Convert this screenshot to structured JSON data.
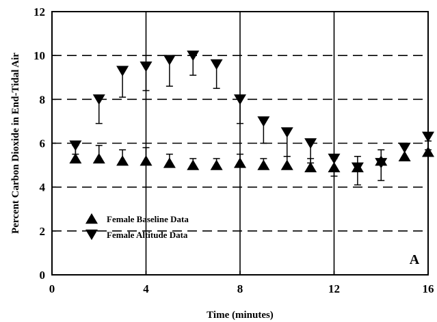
{
  "chart_data": {
    "type": "scatter",
    "xlabel": "Time (minutes)",
    "ylabel": "Percent Carbon Dioxide in End-Tidal Air",
    "panel_label": "A",
    "xlim": [
      0,
      16
    ],
    "ylim": [
      0,
      12
    ],
    "x_ticks": [
      0,
      4,
      8,
      12,
      16
    ],
    "y_ticks": [
      0,
      2,
      4,
      6,
      8,
      10,
      12
    ],
    "x_tick_labels": [
      "0",
      "4",
      "8",
      "12",
      "16"
    ],
    "y_tick_labels": [
      "0",
      "2",
      "4",
      "6",
      "8",
      "10",
      "12"
    ],
    "grid": "horizontal dashed",
    "vertical_lines_at": [
      4,
      8,
      12
    ],
    "legend_position": "lower-left",
    "series": [
      {
        "name": "Female Baseline Data",
        "marker": "triangle-up",
        "error_direction": "up",
        "x": [
          1,
          2,
          3,
          4,
          5,
          6,
          7,
          8,
          9,
          10,
          11,
          12,
          13,
          14,
          15,
          16
        ],
        "y": [
          5.3,
          5.3,
          5.2,
          5.2,
          5.1,
          5.0,
          5.0,
          5.1,
          5.0,
          5.0,
          4.9,
          4.9,
          4.9,
          5.2,
          5.4,
          5.6
        ],
        "error": [
          0.6,
          0.6,
          0.5,
          0.6,
          0.4,
          0.3,
          0.3,
          0.4,
          0.3,
          0.4,
          0.4,
          0.4,
          0.5,
          0.5,
          0.5,
          0.5
        ]
      },
      {
        "name": "Female Altitude Data",
        "marker": "triangle-down",
        "error_direction": "down",
        "x": [
          1,
          2,
          3,
          4,
          5,
          6,
          7,
          8,
          9,
          10,
          11,
          12,
          13,
          14,
          15,
          16
        ],
        "y": [
          5.9,
          8.0,
          9.3,
          9.5,
          9.8,
          10.0,
          9.6,
          8.0,
          7.0,
          6.5,
          6.0,
          5.3,
          4.9,
          5.1,
          5.8,
          6.3
        ],
        "error": [
          0.4,
          1.1,
          1.2,
          1.1,
          1.2,
          0.9,
          1.1,
          1.1,
          1.0,
          1.1,
          0.9,
          0.8,
          0.8,
          0.8,
          0.5,
          0.6
        ]
      }
    ]
  },
  "colors": {
    "axis": "#000000",
    "grid": "#000000",
    "marker": "#000000",
    "background": "#ffffff"
  }
}
